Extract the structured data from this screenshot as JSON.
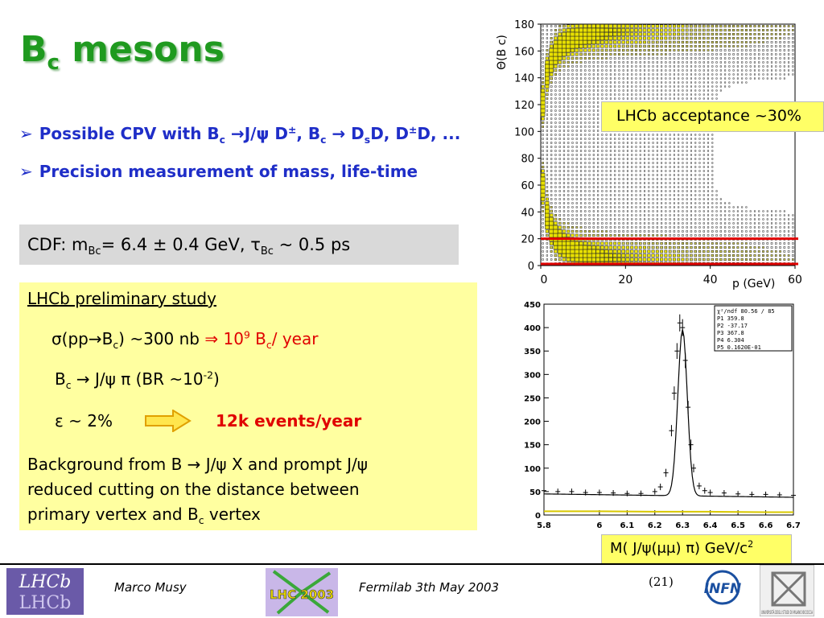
{
  "title": {
    "main": "B",
    "sub": "c",
    "rest": " mesons"
  },
  "bullets": {
    "b1_a": "Possible CPV with B",
    "b1_c1": "c",
    "b1_b": " →J/ψ D",
    "b1_pm1": "±",
    "b1_c": ", B",
    "b1_c2": "c",
    "b1_d": " → D",
    "b1_s": "s",
    "b1_e": "D, D",
    "b1_pm2": "±",
    "b1_f": "D, ...",
    "b2": "Precision measurement of mass, life-time",
    "marker": "➢"
  },
  "cdf": {
    "a": "CDF: m",
    "sub1": "Bc",
    "b": "= 6.4 ± 0.4 GeV,   τ",
    "sub2": "Bc",
    "c": " ~  0.5 ps"
  },
  "study": {
    "heading": "LHCb preliminary study",
    "l2_a": "σ(pp→B",
    "l2_sub": "c",
    "l2_b": ") ~300 nb  ",
    "l2_arrow": "⇒ 10",
    "l2_sup": "9",
    "l2_c": " B",
    "l2_sub2": "c",
    "l2_d": "/ year",
    "l3_a": "B",
    "l3_sub": "c",
    "l3_b": " → J/ψ π   (BR ~10",
    "l3_sup": "-2",
    "l3_c": ")",
    "l4_a": "ε ~ 2%",
    "l4_b": "12k events/year",
    "l5": "Background from B → J/ψ X and prompt J/ψ",
    "l6": "reduced cutting on the distance between",
    "l7_a": "primary vertex and B",
    "l7_sub": "c",
    "l7_b": " vertex"
  },
  "acceptance": "LHCb acceptance ~30%",
  "mass_label": {
    "a": "M( J/ψ(μμ) π) GeV/c",
    "sup": "2"
  },
  "footer": {
    "author": "Marco Musy",
    "event": "Fermilab 3th May 2003",
    "page": "(21)",
    "logo_lhcb": "LHCb",
    "logo_lhc": "LHC 2003",
    "logo_infn": "INFN",
    "logo_unimib": "UNIVERSITÀ DEGLI STUDI DI MILANO BICOCCA"
  },
  "chart_data": [
    {
      "type": "heatmap",
      "title": "",
      "xlabel": "p (GeV)",
      "ylabel": "Θ(B c)",
      "xlim": [
        0,
        60
      ],
      "ylim": [
        0,
        180
      ],
      "xticks": [
        "0",
        "20",
        "40",
        "60"
      ],
      "yticks": [
        "0",
        "20",
        "40",
        "60",
        "80",
        "100",
        "120",
        "140",
        "160",
        "180"
      ],
      "acceptance_lines_y": [
        20,
        0
      ],
      "colors": {
        "band": "#e8e000",
        "lines": "#e00000"
      }
    },
    {
      "type": "line",
      "title": "",
      "xlabel": "",
      "ylabel": "",
      "xlim": [
        5.8,
        6.7
      ],
      "ylim": [
        0,
        450
      ],
      "xticks": [
        "5.8",
        "6",
        "6.1",
        "6.2",
        "6.3",
        "6.4",
        "6.5",
        "6.6",
        "6.7"
      ],
      "yticks": [
        "0",
        "50",
        "100",
        "150",
        "200",
        "250",
        "300",
        "350",
        "400",
        "450"
      ],
      "fit_peak_x": 6.3,
      "fit_peak_y": 400,
      "fit_background_y": 45,
      "series": [
        {
          "x": [
            5.8,
            5.85,
            5.9,
            5.95,
            6.0,
            6.05,
            6.1,
            6.15,
            6.2,
            6.22,
            6.24,
            6.26,
            6.27,
            6.28,
            6.29,
            6.3,
            6.31,
            6.32,
            6.33,
            6.34,
            6.36,
            6.38,
            6.4,
            6.45,
            6.5,
            6.55,
            6.6,
            6.65,
            6.7
          ],
          "y": [
            52,
            50,
            50,
            48,
            48,
            47,
            46,
            46,
            50,
            60,
            90,
            180,
            260,
            350,
            410,
            400,
            330,
            230,
            150,
            100,
            62,
            52,
            48,
            47,
            45,
            44,
            44,
            43,
            42
          ]
        },
        {
          "x": [
            5.8,
            6.0,
            6.2,
            6.4,
            6.6,
            6.7
          ],
          "y": [
            8,
            8,
            7,
            7,
            6,
            6
          ]
        }
      ],
      "stats_box": [
        "χ²/ndf 80.56 / 85",
        "P1 359.8",
        "P2 -37.17",
        "P3 367.8",
        "P4 6.304",
        "P5 0.1620E-01"
      ]
    }
  ]
}
